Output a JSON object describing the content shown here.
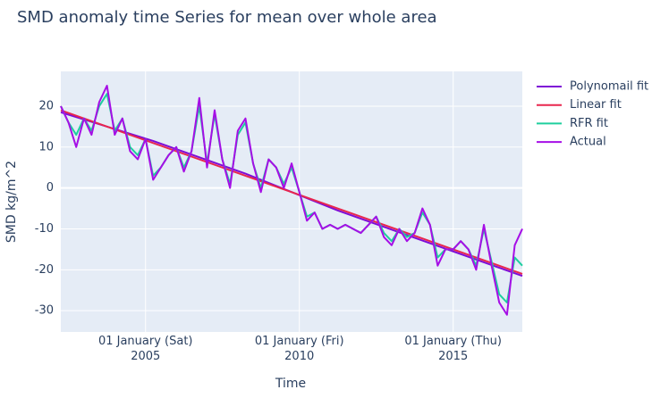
{
  "chart_data": {
    "type": "line",
    "title": "SMD anomaly time Series for mean over whole area",
    "x_label": "Time",
    "y_label": "SMD kg/m^2",
    "x": [
      "2002-04-01",
      "2002-07-01",
      "2002-10-01",
      "2003-01-01",
      "2003-04-01",
      "2003-07-01",
      "2003-10-01",
      "2004-01-01",
      "2004-04-01",
      "2004-07-01",
      "2004-10-01",
      "2005-01-01",
      "2005-04-01",
      "2005-07-01",
      "2005-10-01",
      "2006-01-01",
      "2006-04-01",
      "2006-07-01",
      "2006-10-01",
      "2007-01-01",
      "2007-04-01",
      "2007-07-01",
      "2007-10-01",
      "2008-01-01",
      "2008-04-01",
      "2008-07-01",
      "2008-10-01",
      "2009-01-01",
      "2009-04-01",
      "2009-07-01",
      "2009-10-01",
      "2010-01-01",
      "2010-04-01",
      "2010-07-01",
      "2010-10-01",
      "2011-01-01",
      "2011-04-01",
      "2011-07-01",
      "2011-10-01",
      "2012-01-01",
      "2012-04-01",
      "2012-07-01",
      "2012-10-01",
      "2013-01-01",
      "2013-04-01",
      "2013-07-01",
      "2013-10-01",
      "2014-01-01",
      "2014-04-01",
      "2014-07-01",
      "2014-10-01",
      "2015-01-01",
      "2015-04-01",
      "2015-07-01",
      "2015-10-01",
      "2016-01-01",
      "2016-04-01",
      "2016-07-01",
      "2016-10-01",
      "2017-01-01",
      "2017-04-01"
    ],
    "series": [
      {
        "name": "Polynomail fit",
        "color": "#7e0cd6",
        "x": [
          "2002-04-01",
          "2005-04-01",
          "2008-04-01",
          "2011-04-01",
          "2014-04-01",
          "2017-04-01"
        ],
        "values": [
          18.5,
          11.5,
          3.5,
          -5.5,
          -13.5,
          -21.5
        ]
      },
      {
        "name": "Linear fit",
        "color": "#e8264e",
        "x": [
          "2002-04-01",
          "2017-04-01"
        ],
        "values": [
          19,
          -21
        ]
      },
      {
        "name": "RFR fit",
        "color": "#1ecf9e",
        "values": [
          20,
          16,
          13,
          17,
          14,
          20,
          23,
          14,
          17,
          10,
          8,
          12,
          3,
          5,
          8,
          10,
          5,
          9,
          20,
          6,
          18,
          7,
          1,
          13,
          16,
          6,
          0,
          7,
          5,
          1,
          5,
          -1,
          -7,
          -6,
          -10,
          -9,
          -10,
          -9,
          -10,
          -11,
          -9,
          -7,
          -11,
          -13,
          -10,
          -12,
          -11,
          -6,
          -9,
          -17,
          -15,
          -15,
          -13,
          -15,
          -19,
          -10,
          -18,
          -26,
          -28,
          -17,
          -19
        ]
      },
      {
        "name": "Actual",
        "color": "#a60ee6",
        "values": [
          20,
          16,
          10,
          17,
          13,
          21,
          25,
          13,
          17,
          9,
          7,
          12,
          2,
          5,
          8,
          10,
          4,
          9,
          22,
          5,
          19,
          7,
          0,
          14,
          17,
          6,
          -1,
          7,
          5,
          0,
          6,
          -1,
          -8,
          -6,
          -10,
          -9,
          -10,
          -9,
          -10,
          -11,
          -9,
          -7,
          -12,
          -14,
          -10,
          -13,
          -11,
          -5,
          -9,
          -19,
          -15,
          -15,
          -13,
          -15,
          -20,
          -9,
          -19,
          -28,
          -31,
          -14,
          -10
        ]
      }
    ],
    "xlim": [
      "2002-04-01",
      "2017-04-01"
    ],
    "xticks": [
      {
        "value": "2005-01-01",
        "label": "01 January (Sat)\n2005"
      },
      {
        "value": "2010-01-01",
        "label": "01 January (Fri)\n2010"
      },
      {
        "value": "2015-01-01",
        "label": "01 January (Thu)\n2015"
      }
    ],
    "ylim": [
      -35.2,
      28.5
    ],
    "yticks": [
      -30,
      -20,
      -10,
      0,
      10,
      20
    ],
    "grid": true,
    "legend": "outside-right"
  }
}
